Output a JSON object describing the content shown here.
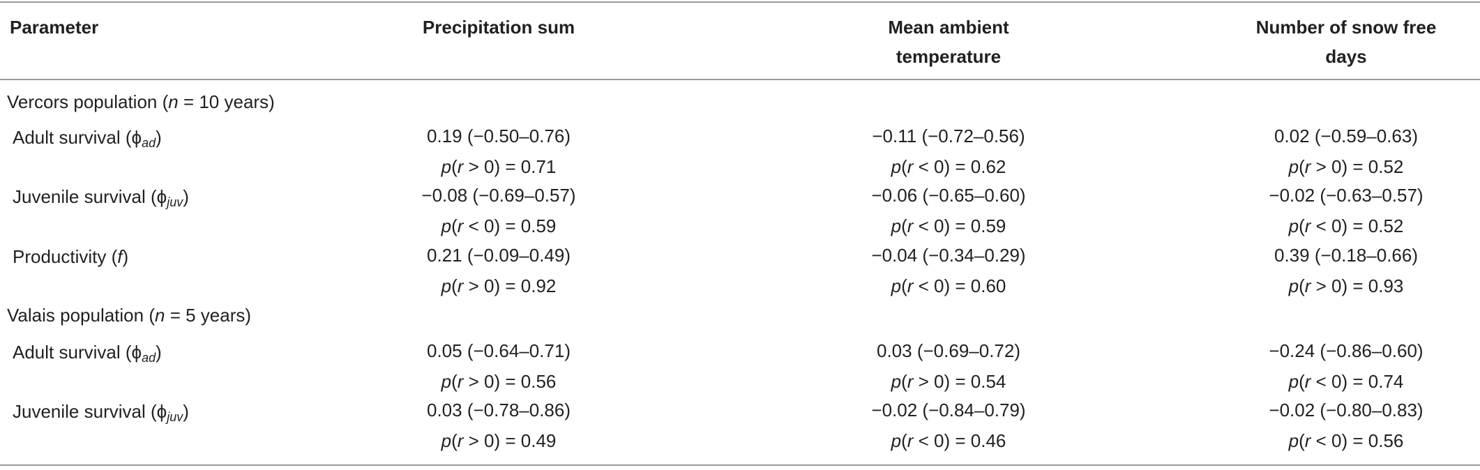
{
  "headers": {
    "parameter": "Parameter",
    "col1": "Precipitation sum",
    "col2_line1": "Mean ambient",
    "col2_line2": "temperature",
    "col3_line1": "Number of snow free",
    "col3_line2": "days"
  },
  "sections": [
    {
      "name": "Vercors population",
      "n_label": "n",
      "n_text": " = 10 years)",
      "rows": [
        {
          "label": "Adult survival (",
          "symbol": "ϕ",
          "sub": "ad",
          "cells": [
            {
              "value": "0.19 (−0.50–0.76)",
              "prob_rel": " > 0) = 0.71"
            },
            {
              "value": "−0.11 (−0.72–0.56)",
              "prob_rel": " < 0) = 0.62"
            },
            {
              "value": "0.02 (−0.59–0.63)",
              "prob_rel": " > 0) = 0.52"
            }
          ]
        },
        {
          "label": "Juvenile survival (",
          "symbol": "ϕ",
          "sub": "juv",
          "cells": [
            {
              "value": "−0.08 (−0.69–0.57)",
              "prob_rel": " < 0) = 0.59"
            },
            {
              "value": "−0.06 (−0.65–0.60)",
              "prob_rel": " < 0) = 0.59"
            },
            {
              "value": "−0.02 (−0.63–0.57)",
              "prob_rel": " < 0) = 0.52"
            }
          ]
        },
        {
          "label": "Productivity (",
          "symbol": "f",
          "sub": "",
          "cells": [
            {
              "value": "0.21 (−0.09–0.49)",
              "prob_rel": " > 0) = 0.92"
            },
            {
              "value": "−0.04 (−0.34–0.29)",
              "prob_rel": " < 0) = 0.60"
            },
            {
              "value": "0.39 (−0.18–0.66)",
              "prob_rel": " > 0) = 0.93"
            }
          ]
        }
      ]
    },
    {
      "name": "Valais population",
      "n_label": "n",
      "n_text": " = 5 years)",
      "rows": [
        {
          "label": "Adult survival (",
          "symbol": "ϕ",
          "sub": "ad",
          "cells": [
            {
              "value": "0.05 (−0.64–0.71)",
              "prob_rel": " > 0) = 0.56"
            },
            {
              "value": "0.03 (−0.69–0.72)",
              "prob_rel": " > 0) = 0.54"
            },
            {
              "value": "−0.24 (−0.86–0.60)",
              "prob_rel": " < 0) = 0.74"
            }
          ]
        },
        {
          "label": "Juvenile survival (",
          "symbol": "ϕ",
          "sub": "juv",
          "cells": [
            {
              "value": "0.03 (−0.78–0.86)",
              "prob_rel": " > 0) = 0.49"
            },
            {
              "value": "−0.02 (−0.84–0.79)",
              "prob_rel": " < 0) = 0.46"
            },
            {
              "value": "−0.02 (−0.80–0.83)",
              "prob_rel": " < 0) = 0.56"
            }
          ]
        }
      ]
    }
  ]
}
